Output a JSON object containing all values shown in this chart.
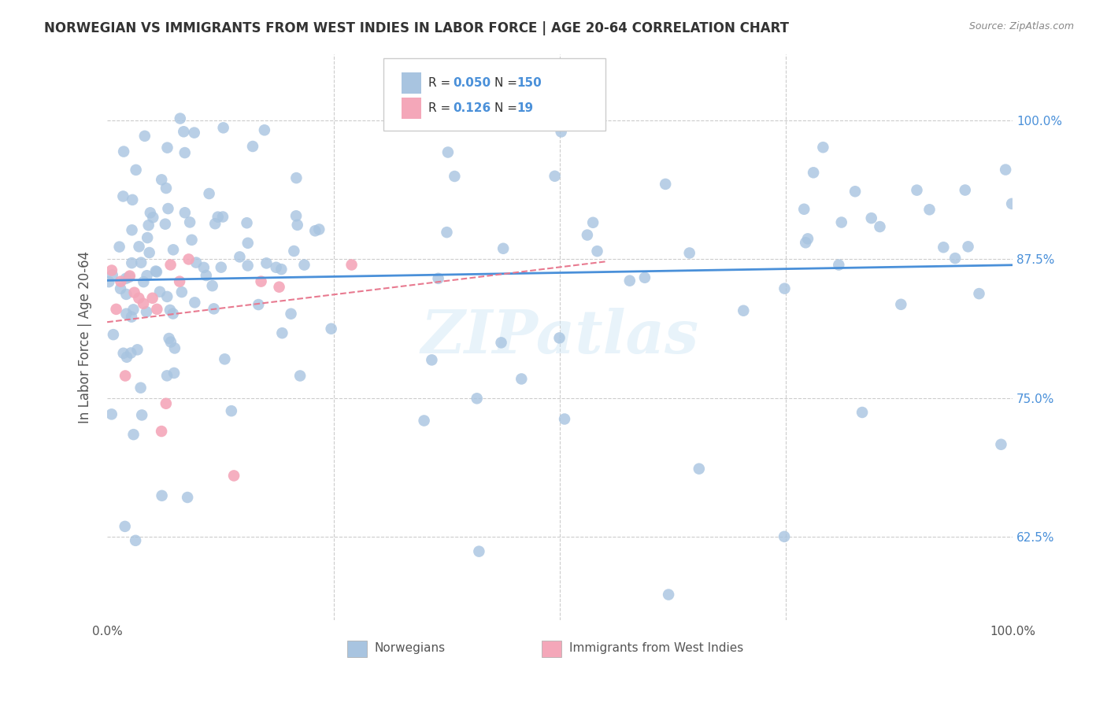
{
  "title": "NORWEGIAN VS IMMIGRANTS FROM WEST INDIES IN LABOR FORCE | AGE 20-64 CORRELATION CHART",
  "source": "Source: ZipAtlas.com",
  "ylabel": "In Labor Force | Age 20-64",
  "xlim": [
    0.0,
    1.0
  ],
  "ylim": [
    0.55,
    1.06
  ],
  "legend_R1": "0.050",
  "legend_N1": "150",
  "legend_R2": "0.126",
  "legend_N2": "19",
  "blue_color": "#a8c4e0",
  "pink_color": "#f4a7b9",
  "line_blue": "#4a90d9",
  "line_pink": "#e87a90",
  "title_color": "#333333",
  "axis_label_color": "#555555",
  "tick_color_right": "#4a90d9",
  "watermark": "ZIPatlas",
  "grid_color": "#cccccc",
  "legend_bottom_labels": [
    "Norwegians",
    "Immigrants from West Indies"
  ]
}
